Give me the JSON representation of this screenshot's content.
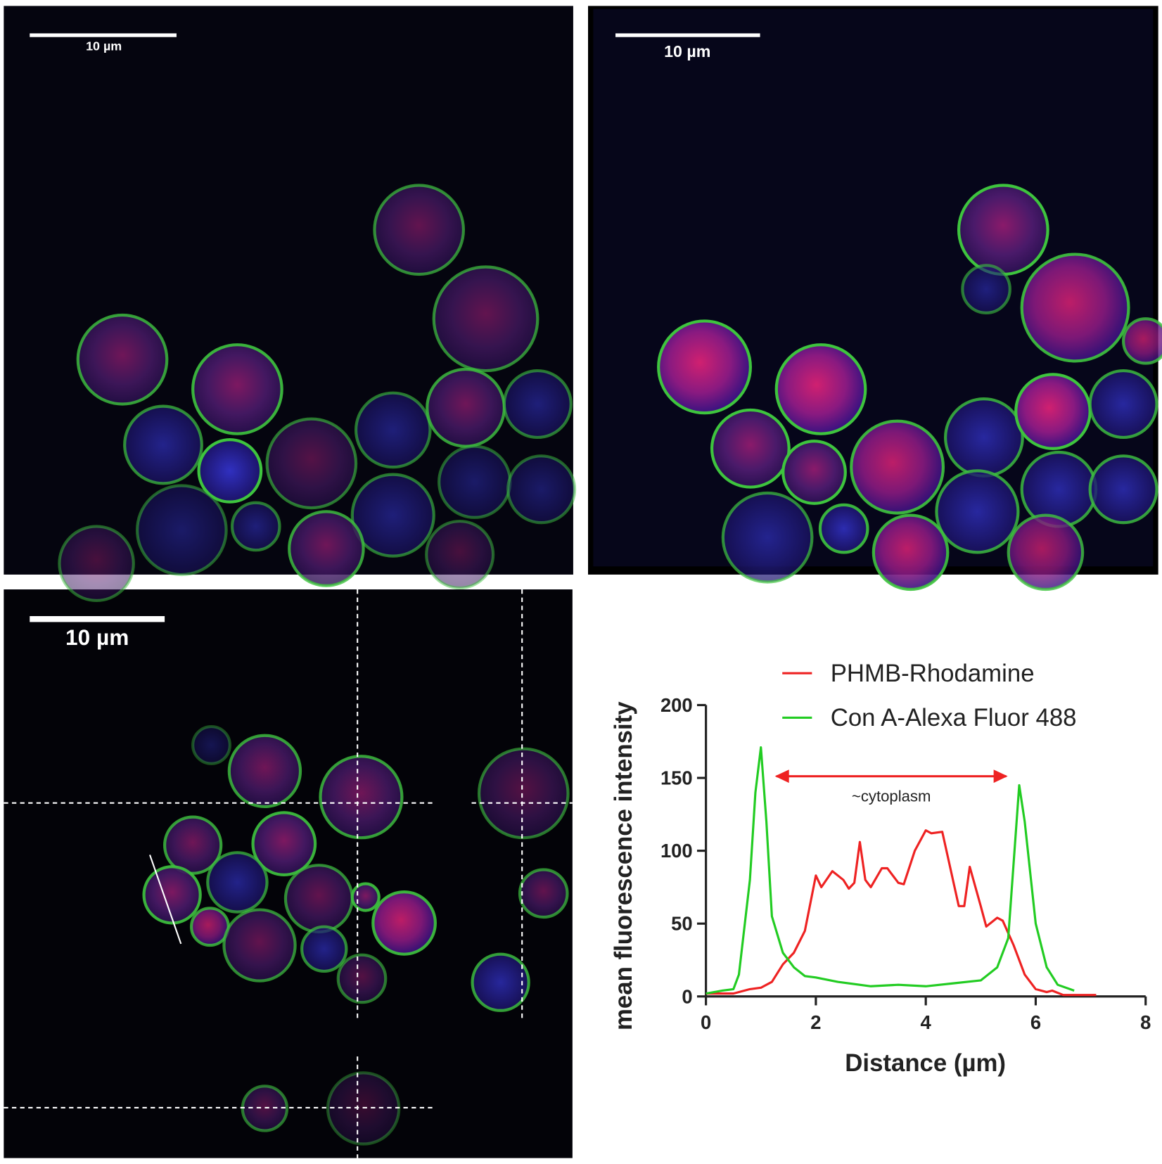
{
  "panels": [
    {
      "scale_bar": "10 µm"
    },
    {
      "scale_bar": "10 µm"
    },
    {
      "scale_bar": "10 µm"
    }
  ],
  "chart_data": {
    "type": "line",
    "xlabel": "Distance (µm)",
    "ylabel": "mean fluorescence intensity",
    "annotation": "~cytoplasm",
    "xlim": [
      0,
      8
    ],
    "xticks": [
      0,
      2,
      4,
      6,
      8
    ],
    "ylim": [
      0,
      200
    ],
    "yticks": [
      0,
      50,
      100,
      150,
      200
    ],
    "series": [
      {
        "name": "PHMB-Rhodamine",
        "color": "#ee2222",
        "x": [
          0,
          0.5,
          0.8,
          1.0,
          1.2,
          1.4,
          1.6,
          1.8,
          2.0,
          2.1,
          2.3,
          2.5,
          2.6,
          2.7,
          2.8,
          2.9,
          3.0,
          3.2,
          3.3,
          3.5,
          3.6,
          3.8,
          4.0,
          4.1,
          4.3,
          4.6,
          4.7,
          4.8,
          5.0,
          5.1,
          5.3,
          5.4,
          5.6,
          5.8,
          6.0,
          6.2,
          6.3,
          6.5,
          7.1
        ],
        "values": [
          2,
          2,
          5,
          6,
          10,
          22,
          30,
          45,
          83,
          75,
          86,
          80,
          74,
          78,
          106,
          80,
          75,
          88,
          88,
          78,
          77,
          100,
          114,
          112,
          113,
          62,
          62,
          89,
          62,
          48,
          54,
          52,
          35,
          15,
          5,
          3,
          4,
          1,
          1
        ]
      },
      {
        "name": "Con A-Alexa Fluor 488",
        "color": "#22cc22",
        "x": [
          0,
          0.3,
          0.5,
          0.6,
          0.8,
          0.9,
          1.0,
          1.1,
          1.2,
          1.4,
          1.6,
          1.8,
          2.0,
          2.4,
          3.0,
          3.5,
          4.0,
          4.5,
          5.0,
          5.3,
          5.5,
          5.7,
          5.8,
          6.0,
          6.2,
          6.4,
          6.7
        ],
        "values": [
          2,
          4,
          5,
          15,
          80,
          140,
          171,
          120,
          55,
          30,
          20,
          14,
          13,
          10,
          7,
          8,
          7,
          9,
          11,
          20,
          40,
          145,
          120,
          50,
          20,
          8,
          4
        ]
      }
    ]
  }
}
